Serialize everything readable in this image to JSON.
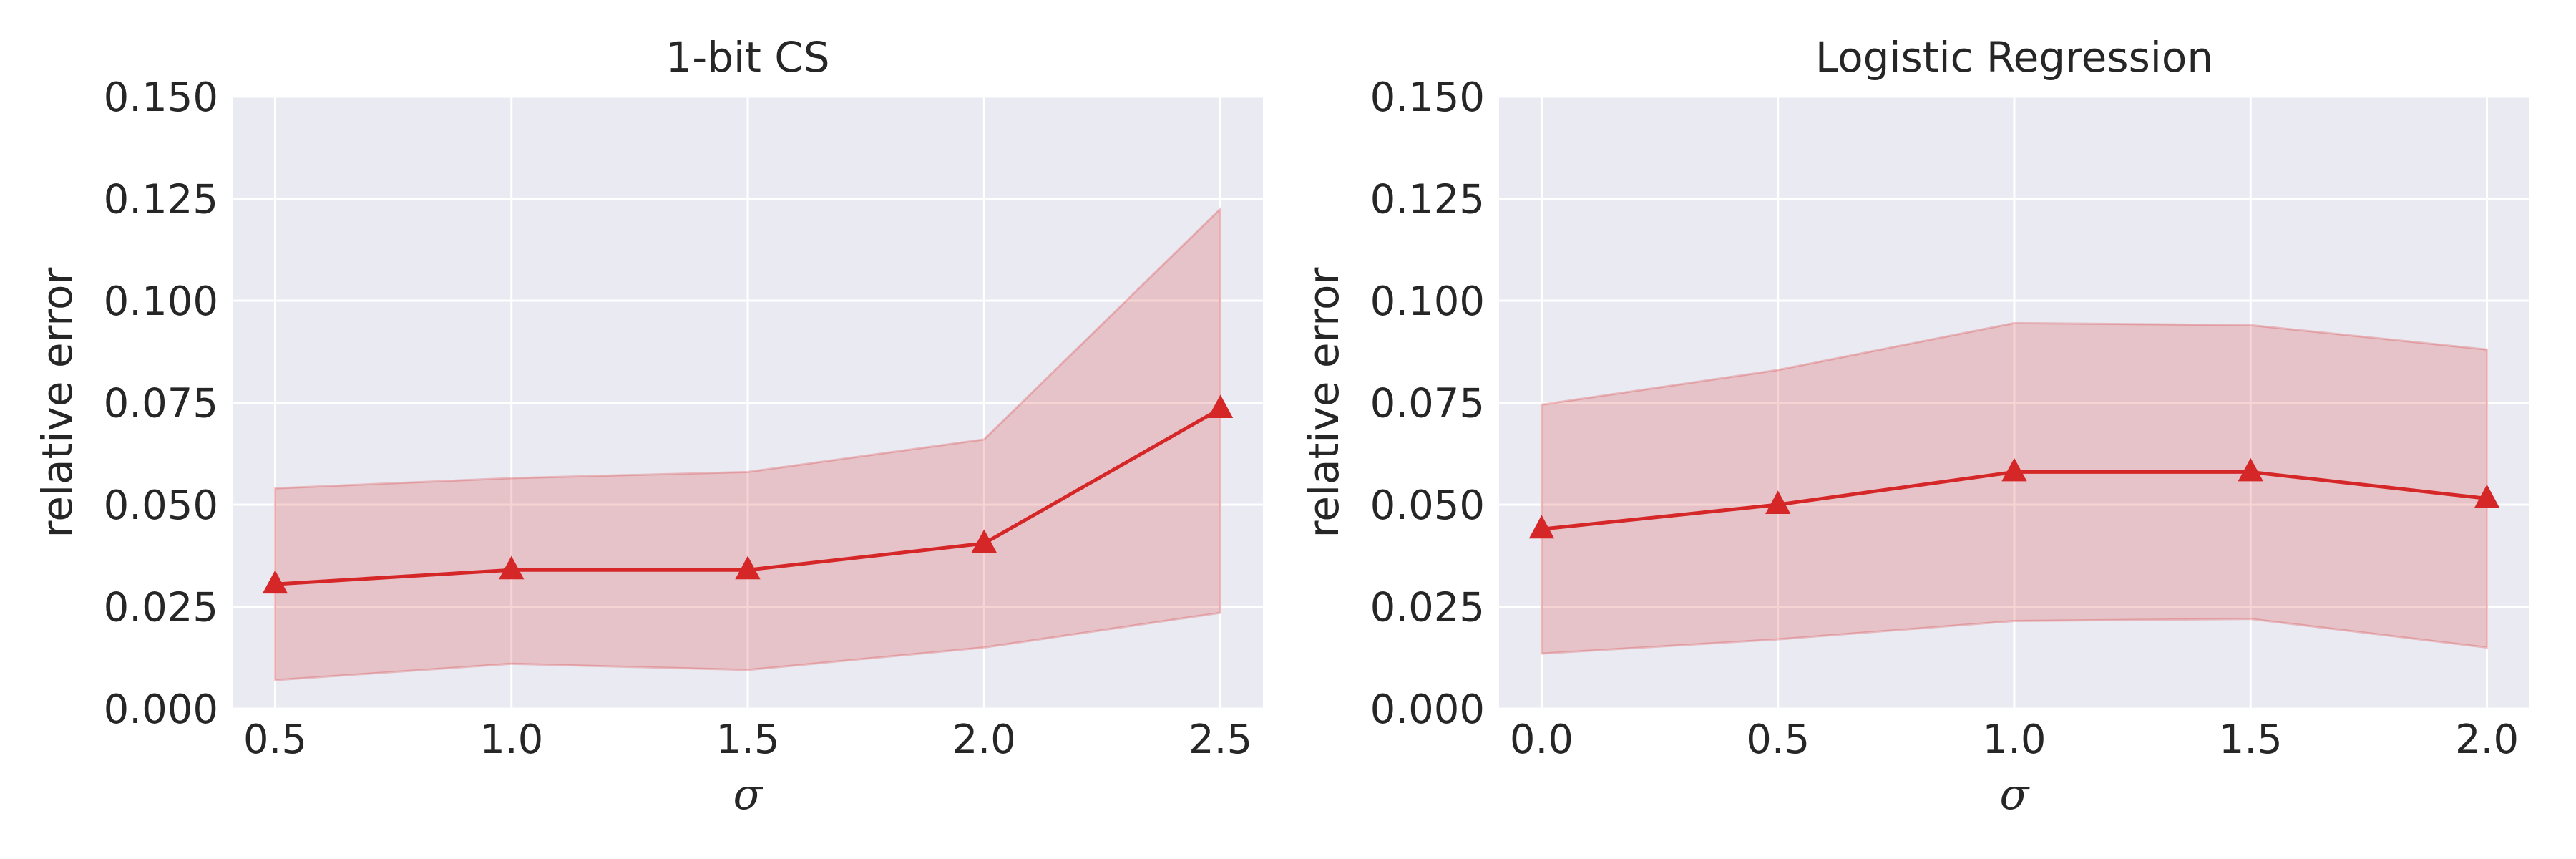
{
  "figure": {
    "background": "#ffffff",
    "axes_facecolor": "#eaeaf2",
    "grid_color": "#ffffff",
    "line_color": "#d62728",
    "band_color": "#d62728",
    "band_opacity": 0.2
  },
  "chart_data": [
    {
      "type": "line",
      "title": "1-bit CS",
      "xlabel": "σ",
      "ylabel": "relative error",
      "xlim": [
        0.41,
        2.59
      ],
      "ylim": [
        0,
        0.15
      ],
      "xticks": [
        0.5,
        1.0,
        1.5,
        2.0,
        2.5
      ],
      "xtick_labels": [
        "0.5",
        "1.0",
        "1.5",
        "2.0",
        "2.5"
      ],
      "yticks": [
        0,
        0.025,
        0.05,
        0.075,
        0.1,
        0.125,
        0.15
      ],
      "ytick_labels": [
        "0.000",
        "0.025",
        "0.050",
        "0.075",
        "0.100",
        "0.125",
        "0.150"
      ],
      "grid": true,
      "marker": "triangle-up",
      "series": [
        {
          "x": [
            0.5,
            1.0,
            1.5,
            2.0,
            2.5
          ],
          "values": [
            0.0305,
            0.034,
            0.034,
            0.0405,
            0.0735
          ],
          "band_upper": [
            0.054,
            0.0565,
            0.058,
            0.066,
            0.1225
          ],
          "band_lower": [
            0.007,
            0.011,
            0.0095,
            0.015,
            0.0235
          ]
        }
      ]
    },
    {
      "type": "line",
      "title": "Logistic Regression",
      "xlabel": "σ",
      "ylabel": "relative error",
      "xlim": [
        -0.09,
        2.09
      ],
      "ylim": [
        0,
        0.15
      ],
      "xticks": [
        0.0,
        0.5,
        1.0,
        1.5,
        2.0
      ],
      "xtick_labels": [
        "0.0",
        "0.5",
        "1.0",
        "1.5",
        "2.0"
      ],
      "yticks": [
        0,
        0.025,
        0.05,
        0.075,
        0.1,
        0.125,
        0.15
      ],
      "ytick_labels": [
        "0.000",
        "0.025",
        "0.050",
        "0.075",
        "0.100",
        "0.125",
        "0.150"
      ],
      "grid": true,
      "marker": "triangle-up",
      "series": [
        {
          "x": [
            0.0,
            0.5,
            1.0,
            1.5,
            2.0
          ],
          "values": [
            0.044,
            0.05,
            0.058,
            0.058,
            0.0515
          ],
          "band_upper": [
            0.0745,
            0.083,
            0.0945,
            0.094,
            0.088
          ],
          "band_lower": [
            0.0135,
            0.017,
            0.0215,
            0.022,
            0.015
          ]
        }
      ]
    }
  ]
}
